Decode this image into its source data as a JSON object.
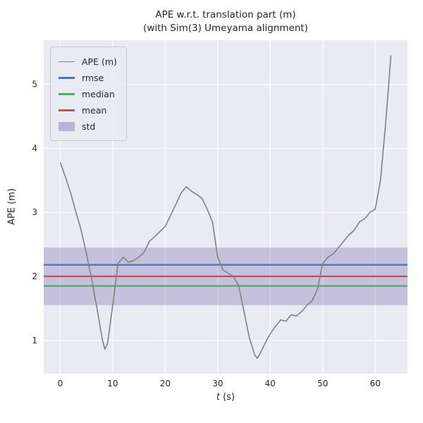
{
  "figure": {
    "title": "APE w.r.t. translation part (m)",
    "subtitle": "(with Sim(3) Umeyama alignment)"
  },
  "chart_data": {
    "type": "line",
    "title": "APE w.r.t. translation part (m)",
    "subtitle": "(with Sim(3) Umeyama alignment)",
    "xlabel": "t (s)",
    "xlabel_var": "t",
    "xlabel_unit": " (s)",
    "ylabel": "APE (m)",
    "xlim": [
      -3.15,
      66.15
    ],
    "ylim": [
      0.48,
      5.69
    ],
    "xticks": [
      0,
      10,
      20,
      30,
      40,
      50,
      60
    ],
    "yticks": [
      1,
      2,
      3,
      4,
      5
    ],
    "grid": true,
    "grid_color": "#ffffff",
    "background": "#eaeaf2",
    "legend_position": "upper left",
    "series": [
      {
        "name": "APE (m)",
        "type": "line",
        "color": "#808080",
        "x": [
          0,
          1,
          2,
          3,
          4,
          5,
          6,
          7,
          8,
          8.5,
          9,
          10,
          11,
          12,
          13,
          14,
          15,
          16,
          17,
          18,
          19,
          20,
          21,
          22,
          23,
          24,
          25,
          26,
          27,
          28,
          29,
          30,
          31,
          32,
          33,
          34,
          35,
          36,
          37,
          37.5,
          38,
          39,
          40,
          41,
          42,
          43,
          44,
          45,
          46,
          47,
          48,
          49,
          50,
          51,
          52,
          53,
          54,
          55,
          56,
          57,
          58,
          59,
          60,
          61,
          62,
          63
        ],
        "y": [
          3.78,
          3.55,
          3.3,
          3.0,
          2.72,
          2.35,
          1.95,
          1.5,
          1.02,
          0.86,
          0.95,
          1.55,
          2.2,
          2.3,
          2.22,
          2.25,
          2.3,
          2.38,
          2.55,
          2.62,
          2.7,
          2.78,
          2.95,
          3.12,
          3.3,
          3.4,
          3.33,
          3.28,
          3.22,
          3.05,
          2.85,
          2.3,
          2.1,
          2.05,
          2.0,
          1.85,
          1.45,
          1.05,
          0.78,
          0.72,
          0.78,
          0.95,
          1.1,
          1.22,
          1.32,
          1.3,
          1.4,
          1.38,
          1.45,
          1.55,
          1.62,
          1.8,
          2.2,
          2.3,
          2.35,
          2.45,
          2.55,
          2.65,
          2.72,
          2.85,
          2.9,
          3.0,
          3.05,
          3.5,
          4.4,
          5.45
        ]
      }
    ],
    "stats": {
      "rmse": {
        "value": 2.18,
        "color": "#4c72b0"
      },
      "median": {
        "value": 1.85,
        "color": "#55a868"
      },
      "mean": {
        "value": 2.0,
        "color": "#c44e52"
      },
      "std": {
        "band": [
          1.55,
          2.45
        ],
        "color": "#8172b2",
        "alpha": 0.35
      }
    },
    "legend": [
      {
        "label": "APE (m)",
        "color": "#808080",
        "type": "line",
        "thickness": 1.6
      },
      {
        "label": "rmse",
        "color": "#4c72b0",
        "type": "line",
        "thickness": 2.5
      },
      {
        "label": "median",
        "color": "#55a868",
        "type": "line",
        "thickness": 2.5
      },
      {
        "label": "mean",
        "color": "#c44e52",
        "type": "line",
        "thickness": 2.5
      },
      {
        "label": "std",
        "color": "#8172b2",
        "type": "patch",
        "thickness": 13
      }
    ]
  }
}
